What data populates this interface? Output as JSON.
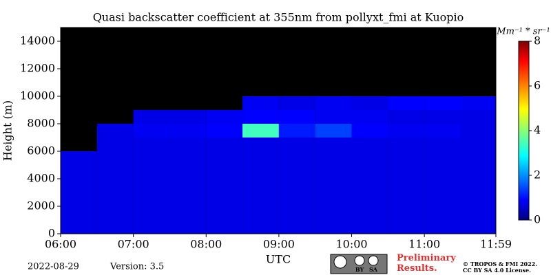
{
  "chart_data": {
    "type": "heatmap",
    "title": "Quasi backscatter coefficient at 355nm from pollyxt_fmi at Kuopio",
    "xlabel": "UTC",
    "ylabel": "Height (m)",
    "colorbar_label": "Mm⁻¹ * sr⁻¹",
    "date": "2022-08-29",
    "version": "Version: 3.5",
    "notice": "Preliminary Results.",
    "copyright": [
      "© TROPOS & FMI 2022.",
      "CC BY SA 4.0 License."
    ],
    "license_badge": [
      "BY",
      "SA"
    ],
    "xlim": [
      6,
      11.983
    ],
    "xticks": [
      {
        "value": 6,
        "label": "06:00"
      },
      {
        "value": 7,
        "label": "07:00"
      },
      {
        "value": 8,
        "label": "08:00"
      },
      {
        "value": 9,
        "label": "09:00"
      },
      {
        "value": 10,
        "label": "10:00"
      },
      {
        "value": 11,
        "label": "11:00"
      },
      {
        "value": 11.983,
        "label": "11:59"
      }
    ],
    "ylim": [
      0,
      15000
    ],
    "yticks": [
      0,
      2000,
      4000,
      6000,
      8000,
      10000,
      12000,
      14000
    ],
    "clim": [
      0,
      8
    ],
    "cticks": [
      0,
      2,
      4,
      6,
      8
    ],
    "xbins": [
      6,
      6.5,
      7,
      7.5,
      8,
      8.5,
      9,
      9.5,
      10,
      10.5,
      11,
      11.5,
      11.983
    ],
    "ybins": [
      0,
      1000,
      2000,
      3000,
      4000,
      5000,
      6000,
      7000,
      8000,
      9000,
      10000,
      11000,
      12000,
      13000,
      14000,
      15000
    ],
    "z": [
      [
        0.8,
        0.8,
        0.8,
        0.8,
        0.8,
        0.8,
        0.8,
        0.8,
        0.8,
        0.8,
        0.8,
        0.8
      ],
      [
        0.8,
        0.8,
        0.8,
        0.8,
        0.8,
        0.8,
        0.8,
        0.8,
        0.8,
        0.8,
        0.8,
        0.8
      ],
      [
        0.8,
        0.8,
        0.8,
        0.8,
        0.8,
        0.8,
        0.8,
        0.8,
        0.8,
        0.8,
        0.8,
        0.8
      ],
      [
        0.8,
        0.8,
        0.8,
        0.8,
        0.8,
        0.8,
        0.8,
        0.8,
        0.8,
        0.8,
        0.8,
        0.8
      ],
      [
        0.8,
        0.8,
        0.8,
        0.8,
        0.8,
        0.8,
        0.8,
        0.8,
        0.8,
        0.8,
        0.8,
        0.8
      ],
      [
        0.8,
        0.8,
        0.8,
        0.8,
        0.8,
        0.8,
        0.8,
        0.8,
        0.8,
        0.8,
        0.8,
        0.8
      ],
      [
        null,
        0.8,
        0.8,
        0.8,
        0.8,
        0.8,
        0.8,
        0.8,
        0.8,
        0.8,
        0.8,
        0.8
      ],
      [
        null,
        0.8,
        0.9,
        0.9,
        1.0,
        3.5,
        1.2,
        1.5,
        1.0,
        0.9,
        0.9,
        0.8
      ],
      [
        null,
        null,
        0.8,
        0.8,
        0.9,
        1.0,
        1.0,
        0.9,
        0.9,
        0.8,
        0.8,
        0.8
      ],
      [
        null,
        null,
        null,
        null,
        null,
        0.9,
        0.8,
        0.9,
        0.8,
        1.0,
        1.0,
        0.9
      ],
      [
        null,
        null,
        null,
        null,
        null,
        null,
        null,
        null,
        null,
        null,
        null,
        null
      ],
      [
        null,
        null,
        null,
        null,
        null,
        null,
        null,
        null,
        null,
        null,
        null,
        null
      ],
      [
        null,
        null,
        null,
        null,
        null,
        null,
        null,
        null,
        null,
        null,
        null,
        null
      ],
      [
        null,
        null,
        null,
        null,
        null,
        null,
        null,
        null,
        null,
        null,
        null,
        null
      ],
      [
        null,
        null,
        null,
        null,
        null,
        null,
        null,
        null,
        null,
        null,
        null,
        null
      ]
    ]
  }
}
